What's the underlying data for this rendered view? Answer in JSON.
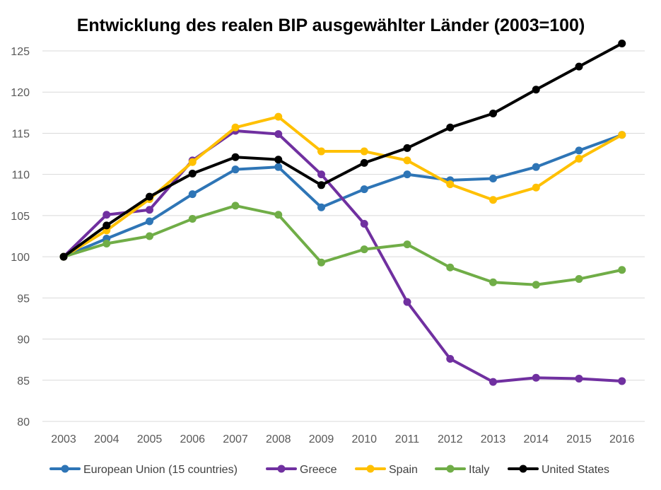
{
  "chart_data": {
    "type": "line",
    "title": "Entwicklung des realen BIP ausgewählter Länder (2003=100)",
    "xlabel": "",
    "ylabel": "",
    "ylim": [
      80,
      125
    ],
    "yticks": [
      80,
      85,
      90,
      95,
      100,
      105,
      110,
      115,
      120,
      125
    ],
    "grid": true,
    "legend_position": "bottom",
    "categories": [
      "2003",
      "2004",
      "2005",
      "2006",
      "2007",
      "2008",
      "2009",
      "2010",
      "2011",
      "2012",
      "2013",
      "2014",
      "2015",
      "2016"
    ],
    "series": [
      {
        "name": "European Union (15 countries)",
        "color": "#2e75b6",
        "values": [
          100,
          102.2,
          104.3,
          107.6,
          110.6,
          110.9,
          106.0,
          108.2,
          110.0,
          109.3,
          109.5,
          110.9,
          112.9,
          114.8
        ]
      },
      {
        "name": "Greece",
        "color": "#7030a0",
        "values": [
          100,
          105.1,
          105.7,
          111.7,
          115.3,
          114.9,
          110.0,
          104.0,
          94.5,
          87.6,
          84.8,
          85.3,
          85.2,
          84.9
        ]
      },
      {
        "name": "Spain",
        "color": "#ffc000",
        "values": [
          100,
          103.2,
          107.0,
          111.5,
          115.7,
          117.0,
          112.8,
          112.8,
          111.7,
          108.8,
          106.9,
          108.4,
          111.9,
          114.8
        ]
      },
      {
        "name": "Italy",
        "color": "#70ad47",
        "values": [
          100,
          101.6,
          102.5,
          104.6,
          106.2,
          105.1,
          99.3,
          100.9,
          101.5,
          98.7,
          96.9,
          96.6,
          97.3,
          98.4
        ]
      },
      {
        "name": "United States",
        "color": "#000000",
        "values": [
          100,
          103.8,
          107.3,
          110.1,
          112.1,
          111.8,
          108.7,
          111.4,
          113.2,
          115.7,
          117.4,
          120.3,
          123.1,
          125.9
        ]
      }
    ]
  }
}
